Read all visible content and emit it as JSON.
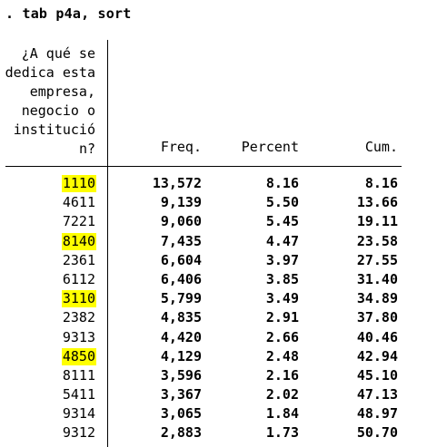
{
  "command": ". tab p4a, sort",
  "variable_label_lines": [
    "¿A qué se",
    "dedica esta",
    "empresa,",
    "negocio o",
    "institució",
    "n?"
  ],
  "headers": {
    "freq": "Freq.",
    "percent": "Percent",
    "cum": "Cum."
  },
  "highlight_color": "#ffff00",
  "rows": [
    {
      "code": "1110",
      "freq": "13,572",
      "percent": "8.16",
      "cum": "8.16",
      "highlighted": true
    },
    {
      "code": "4611",
      "freq": "9,139",
      "percent": "5.50",
      "cum": "13.66",
      "highlighted": false
    },
    {
      "code": "7221",
      "freq": "9,060",
      "percent": "5.45",
      "cum": "19.11",
      "highlighted": false
    },
    {
      "code": "8140",
      "freq": "7,435",
      "percent": "4.47",
      "cum": "23.58",
      "highlighted": true
    },
    {
      "code": "2361",
      "freq": "6,604",
      "percent": "3.97",
      "cum": "27.55",
      "highlighted": false
    },
    {
      "code": "6112",
      "freq": "6,406",
      "percent": "3.85",
      "cum": "31.40",
      "highlighted": false
    },
    {
      "code": "3110",
      "freq": "5,799",
      "percent": "3.49",
      "cum": "34.89",
      "highlighted": true
    },
    {
      "code": "2382",
      "freq": "4,835",
      "percent": "2.91",
      "cum": "37.80",
      "highlighted": false
    },
    {
      "code": "9313",
      "freq": "4,420",
      "percent": "2.66",
      "cum": "40.46",
      "highlighted": false
    },
    {
      "code": "4850",
      "freq": "4,129",
      "percent": "2.48",
      "cum": "42.94",
      "highlighted": true
    },
    {
      "code": "8111",
      "freq": "3,596",
      "percent": "2.16",
      "cum": "45.10",
      "highlighted": false
    },
    {
      "code": "5411",
      "freq": "3,367",
      "percent": "2.02",
      "cum": "47.13",
      "highlighted": false
    },
    {
      "code": "9314",
      "freq": "3,065",
      "percent": "1.84",
      "cum": "48.97",
      "highlighted": false
    },
    {
      "code": "9312",
      "freq": "2,883",
      "percent": "1.73",
      "cum": "50.70",
      "highlighted": false
    }
  ]
}
